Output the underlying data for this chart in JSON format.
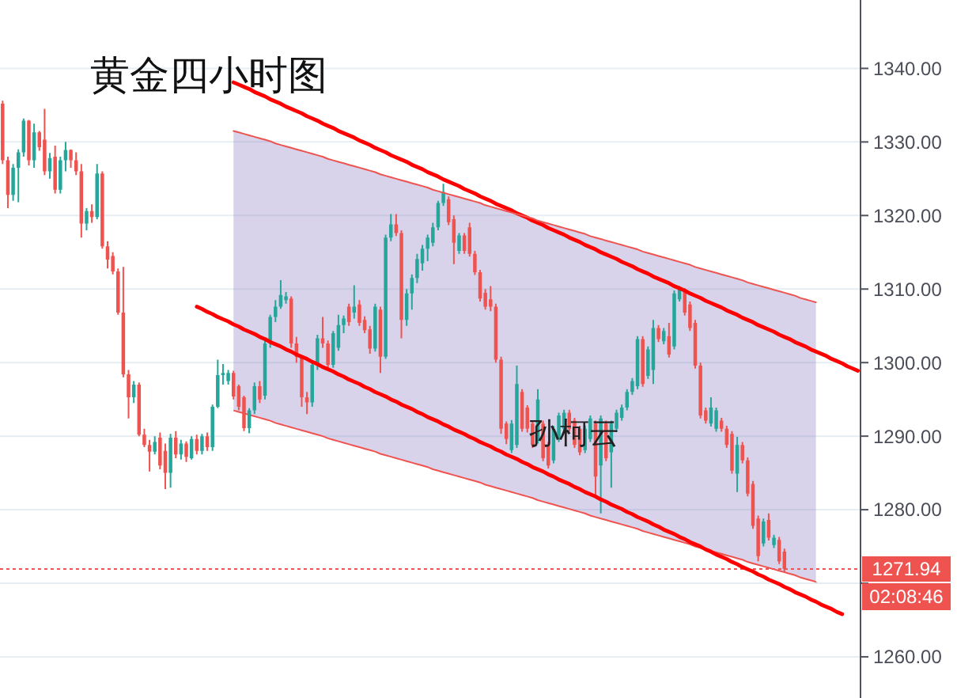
{
  "chart_data": {
    "type": "candlestick",
    "title": "黄金四小时图",
    "categories": [
      null,
      null,
      null,
      null,
      null,
      null,
      null,
      null,
      null,
      null,
      null,
      null,
      null,
      null,
      null,
      null,
      null,
      null,
      null,
      null,
      null,
      null,
      null,
      null,
      null,
      null,
      null,
      null,
      null,
      null,
      null,
      null,
      null,
      null,
      null,
      null,
      null,
      null,
      null,
      null,
      null,
      null,
      null,
      null,
      null,
      null,
      null,
      null,
      null,
      null,
      null,
      null,
      null,
      null,
      null,
      null,
      null,
      null,
      null,
      null,
      null,
      null,
      null,
      null,
      null,
      null,
      null,
      null,
      null,
      null,
      null,
      null,
      null,
      null,
      null,
      null,
      null,
      null,
      null,
      null,
      null,
      null,
      null,
      null,
      null,
      null,
      null,
      null,
      null,
      null,
      null,
      null,
      null,
      null,
      null,
      null,
      null,
      null,
      null,
      null,
      null,
      null,
      null,
      null,
      null,
      null,
      null,
      null,
      null,
      null,
      null,
      null,
      null,
      null,
      null,
      null,
      null,
      null,
      null,
      null,
      null,
      null,
      null,
      null,
      null,
      null,
      null,
      null,
      null,
      null,
      null,
      null,
      null,
      null,
      null,
      null,
      null,
      null,
      null,
      null,
      null,
      null,
      null,
      null,
      null,
      null,
      null,
      null,
      null,
      null,
      null,
      null,
      null,
      null,
      null,
      null,
      null,
      null,
      null,
      null,
      null,
      null,
      null,
      null
    ],
    "ohlc": [
      [
        1335.2,
        1335.6,
        1327,
        1327.5
      ],
      [
        1327.5,
        1328,
        1321,
        1322.8
      ],
      [
        1322.8,
        1327,
        1322,
        1326.5
      ],
      [
        1326.5,
        1329,
        1321.8,
        1328.6
      ],
      [
        1328.6,
        1333.2,
        1328,
        1332.9
      ],
      [
        1332.9,
        1333,
        1326.8,
        1327.5
      ],
      [
        1327.5,
        1332.5,
        1326.5,
        1331.3
      ],
      [
        1331.3,
        1331.5,
        1328.8,
        1329.3
      ],
      [
        1330.3,
        1334.5,
        1325.5,
        1326
      ],
      [
        1326,
        1328.5,
        1325,
        1327.8
      ],
      [
        1328,
        1329.5,
        1323,
        1323.5
      ],
      [
        1323.5,
        1328,
        1323,
        1327.5
      ],
      [
        1327.5,
        1330,
        1326,
        1328.9
      ],
      [
        1328.9,
        1329,
        1326.5,
        1327.5
      ],
      [
        1327.5,
        1328.6,
        1325.5,
        1326
      ],
      [
        1326,
        1327,
        1317,
        1318.9
      ],
      [
        1318.9,
        1321,
        1318,
        1320.6
      ],
      [
        1320.6,
        1321.5,
        1319,
        1319.8
      ],
      [
        1319.8,
        1327,
        1319.5,
        1325.7
      ],
      [
        1325.7,
        1326,
        1315.5,
        1315.8
      ],
      [
        1315.8,
        1316.5,
        1312.8,
        1314
      ],
      [
        1314.5,
        1315,
        1312,
        1312.4
      ],
      [
        1312.4,
        1312.8,
        1306.5,
        1306.8
      ],
      [
        1306.8,
        1313,
        1298,
        1298.4
      ],
      [
        1298.4,
        1299,
        1292.4,
        1295.3
      ],
      [
        1295.3,
        1297.5,
        1294.5,
        1297
      ],
      [
        1297,
        1297.3,
        1290,
        1290.2
      ],
      [
        1290.2,
        1291,
        1288.5,
        1288.8
      ],
      [
        1288.8,
        1289.5,
        1285.2,
        1287.9
      ],
      [
        1287.9,
        1290,
        1287.5,
        1289.2
      ],
      [
        1289.8,
        1290.5,
        1285.5,
        1286
      ],
      [
        1288,
        1289,
        1282.8,
        1285
      ],
      [
        1285,
        1290.3,
        1283,
        1289.8
      ],
      [
        1289.8,
        1290.7,
        1287,
        1287.5
      ],
      [
        1287.5,
        1289.5,
        1286.8,
        1289
      ],
      [
        1289,
        1289.3,
        1286.5,
        1287.2
      ],
      [
        1287,
        1290,
        1286.8,
        1289.6
      ],
      [
        1289.6,
        1290.2,
        1287.5,
        1288
      ],
      [
        1288,
        1290.3,
        1287.5,
        1290
      ],
      [
        1290,
        1290.5,
        1288,
        1288.5
      ],
      [
        1288.5,
        1294.3,
        1288,
        1294
      ],
      [
        1294,
        1300.4,
        1293.8,
        1298.3
      ],
      [
        1298.3,
        1299.8,
        1297,
        1298.6
      ],
      [
        1297.5,
        1299,
        1297,
        1298.6
      ],
      [
        1298.6,
        1298.9,
        1295,
        1295.4
      ],
      [
        1296.8,
        1297,
        1293.5,
        1294
      ],
      [
        1295.3,
        1295.5,
        1290.7,
        1291.1
      ],
      [
        1291.1,
        1293.8,
        1290.4,
        1293.5
      ],
      [
        1293.5,
        1297.3,
        1293,
        1296.8
      ],
      [
        1296.8,
        1297.5,
        1294.5,
        1295
      ],
      [
        1295.5,
        1303,
        1295,
        1302.6
      ],
      [
        1302.6,
        1306.5,
        1302,
        1306.2
      ],
      [
        1306.2,
        1308.5,
        1305.5,
        1307.6
      ],
      [
        1307.6,
        1311.2,
        1307.3,
        1309.2
      ],
      [
        1308.5,
        1309.6,
        1308,
        1309
      ],
      [
        1308.7,
        1309,
        1302,
        1302.6
      ],
      [
        1302.6,
        1303.5,
        1300,
        1300.8
      ],
      [
        1300.8,
        1301,
        1294,
        1295.3
      ],
      [
        1295.3,
        1296,
        1293,
        1294.6
      ],
      [
        1294.6,
        1300,
        1294,
        1299.7
      ],
      [
        1299.7,
        1303.8,
        1299,
        1303.3
      ],
      [
        1303.3,
        1306.2,
        1302,
        1302.6
      ],
      [
        1302.6,
        1303,
        1299,
        1299.7
      ],
      [
        1299.7,
        1304.3,
        1299.3,
        1304
      ],
      [
        1302,
        1306.5,
        1301.6,
        1305.1
      ],
      [
        1305.1,
        1306.4,
        1304,
        1306
      ],
      [
        1307.6,
        1308,
        1305,
        1305.5
      ],
      [
        1306.8,
        1310.5,
        1306,
        1307.6
      ],
      [
        1307.9,
        1308.5,
        1305,
        1305.4
      ],
      [
        1305.8,
        1306.3,
        1304,
        1304.4
      ],
      [
        1304.5,
        1305,
        1301.2,
        1301.9
      ],
      [
        1301.9,
        1308,
        1301.5,
        1307.6
      ],
      [
        1307.2,
        1307.6,
        1298.6,
        1300.8
      ],
      [
        1300.8,
        1317.4,
        1300.5,
        1317
      ],
      [
        1317,
        1320.2,
        1316.5,
        1318.8
      ],
      [
        1318.8,
        1320.2,
        1317.2,
        1317.6
      ],
      [
        1317.6,
        1318,
        1303.3,
        1305.8
      ],
      [
        1305.8,
        1310,
        1305,
        1309.4
      ],
      [
        1309.4,
        1312,
        1307.2,
        1311.5
      ],
      [
        1311.5,
        1314.8,
        1310.8,
        1314.1
      ],
      [
        1313.5,
        1316,
        1312.5,
        1315.5
      ],
      [
        1315.5,
        1317.4,
        1313.8,
        1317
      ],
      [
        1316.3,
        1319,
        1315.8,
        1318.4
      ],
      [
        1318.4,
        1322,
        1318,
        1321.7
      ],
      [
        1321.7,
        1324.3,
        1321.3,
        1323.2
      ],
      [
        1322.2,
        1322.6,
        1318.7,
        1319.1
      ],
      [
        1319.5,
        1320,
        1313.4,
        1316.3
      ],
      [
        1315.2,
        1317.6,
        1314.8,
        1317.3
      ],
      [
        1317.3,
        1317.6,
        1314.8,
        1315.2
      ],
      [
        1318.4,
        1319,
        1314.4,
        1314.8
      ],
      [
        1314.8,
        1315.2,
        1311.9,
        1312.3
      ],
      [
        1312.3,
        1312.6,
        1308.3,
        1308.7
      ],
      [
        1309.5,
        1310,
        1307.2,
        1307.6
      ],
      [
        1308.6,
        1310.4,
        1307,
        1307.6
      ],
      [
        1307.6,
        1308,
        1300,
        1300.4
      ],
      [
        1300.4,
        1300.8,
        1290.3,
        1291
      ],
      [
        1291.7,
        1292,
        1288.9,
        1289.6
      ],
      [
        1288.1,
        1292.2,
        1287.7,
        1291.7
      ],
      [
        1288.8,
        1299.6,
        1288.4,
        1297.1
      ],
      [
        1296,
        1296.4,
        1290.6,
        1291
      ],
      [
        1293.9,
        1294.2,
        1290.5,
        1291
      ],
      [
        1291.7,
        1292,
        1288.4,
        1288.8
      ],
      [
        1289.6,
        1296.4,
        1289,
        1295
      ],
      [
        1291.7,
        1292.1,
        1286.6,
        1287
      ],
      [
        1288.8,
        1289.2,
        1285.6,
        1286
      ],
      [
        1286.7,
        1291.4,
        1286.3,
        1291
      ],
      [
        1289.6,
        1293.2,
        1289.2,
        1292.8
      ],
      [
        1291,
        1293.6,
        1290.6,
        1293.2
      ],
      [
        1293.2,
        1293.6,
        1290.6,
        1291
      ],
      [
        1292.1,
        1292.5,
        1288.4,
        1288.8
      ],
      [
        1291,
        1291.4,
        1287.4,
        1287.8
      ],
      [
        1288.1,
        1291.4,
        1287.7,
        1291
      ],
      [
        1289.6,
        1292.8,
        1289.2,
        1292.4
      ],
      [
        1291.7,
        1292.1,
        1281.6,
        1284.5
      ],
      [
        1286,
        1292.8,
        1279.5,
        1292.4
      ],
      [
        1291.7,
        1292.1,
        1286.6,
        1287
      ],
      [
        1287.8,
        1292.1,
        1283,
        1291.7
      ],
      [
        1291,
        1293.6,
        1290.6,
        1293.2
      ],
      [
        1292.5,
        1294.3,
        1292.1,
        1293.9
      ],
      [
        1293.9,
        1296.4,
        1293.5,
        1296
      ],
      [
        1296,
        1297.9,
        1295.6,
        1297.5
      ],
      [
        1296.8,
        1303.6,
        1296.4,
        1303.2
      ],
      [
        1303.2,
        1303.6,
        1296.7,
        1297.1
      ],
      [
        1298.2,
        1302.2,
        1297.8,
        1301.8
      ],
      [
        1299,
        1305.8,
        1297.1,
        1304.7
      ],
      [
        1304.7,
        1305.1,
        1302.8,
        1303.2
      ],
      [
        1302.9,
        1304.7,
        1302.5,
        1304.3
      ],
      [
        1303.6,
        1305.4,
        1300.7,
        1301.1
      ],
      [
        1302.2,
        1309.8,
        1301.8,
        1309.4
      ],
      [
        1308.6,
        1310.4,
        1308.3,
        1310
      ],
      [
        1309.7,
        1310.1,
        1306.4,
        1306.8
      ],
      [
        1307.9,
        1308.3,
        1304.3,
        1304.7
      ],
      [
        1305.4,
        1305.8,
        1299.2,
        1299.6
      ],
      [
        1299.6,
        1300,
        1292.4,
        1292.8
      ],
      [
        1293.5,
        1293.9,
        1291.7,
        1292.1
      ],
      [
        1291.7,
        1295.3,
        1291.3,
        1293.9
      ],
      [
        1291,
        1293.9,
        1290.6,
        1293.5
      ],
      [
        1292.1,
        1292.5,
        1290.6,
        1291
      ],
      [
        1291,
        1291.4,
        1288.4,
        1288.8
      ],
      [
        1290.3,
        1290.7,
        1284.9,
        1285.3
      ],
      [
        1284.9,
        1289.9,
        1282.4,
        1288.8
      ],
      [
        1288.8,
        1289.2,
        1286.3,
        1286.7
      ],
      [
        1286.7,
        1287.1,
        1281.8,
        1282.2
      ],
      [
        1283.5,
        1283.9,
        1277.4,
        1277.8
      ],
      [
        1278.8,
        1279.2,
        1273,
        1273.7
      ],
      [
        1275.4,
        1278.8,
        1275,
        1278.4
      ],
      [
        1278.6,
        1279.5,
        1275.8,
        1276.2
      ],
      [
        1275.2,
        1276.6,
        1274.8,
        1276.2
      ],
      [
        1275.9,
        1276.3,
        1272.6,
        1273
      ],
      [
        1274.3,
        1274.7,
        1271.5,
        1271.94
      ],
      null,
      null,
      null,
      null,
      null,
      null,
      null,
      null,
      null,
      null,
      null,
      null,
      null,
      null
    ],
    "colors": [
      "#ef5350",
      "#ef5350",
      "#26a69a",
      "#26a69a",
      "#26a69a",
      "#ef5350",
      "#26a69a",
      "#ef5350",
      "#ef5350",
      "#26a69a",
      "#ef5350",
      "#26a69a",
      "#26a69a",
      "#ef5350",
      "#ef5350",
      "#ef5350",
      "#26a69a",
      "#ef5350",
      "#26a69a",
      "#ef5350",
      "#ef5350",
      "#ef5350",
      "#ef5350",
      "#ef5350",
      "#ef5350",
      "#26a69a",
      "#ef5350",
      "#ef5350",
      "#ef5350",
      "#26a69a",
      "#ef5350",
      "#ef5350",
      "#26a69a",
      "#ef5350",
      "#26a69a",
      "#ef5350",
      "#26a69a",
      "#ef5350",
      "#26a69a",
      "#ef5350",
      "#26a69a",
      "#26a69a",
      "#26a69a",
      "#26a69a",
      "#ef5350",
      "#ef5350",
      "#ef5350",
      "#26a69a",
      "#26a69a",
      "#ef5350",
      "#26a69a",
      "#26a69a",
      "#26a69a",
      "#26a69a",
      "#26a69a",
      "#ef5350",
      "#ef5350",
      "#ef5350",
      "#ef5350",
      "#26a69a",
      "#26a69a",
      "#ef5350",
      "#ef5350",
      "#26a69a",
      "#26a69a",
      "#26a69a",
      "#ef5350",
      "#26a69a",
      "#ef5350",
      "#ef5350",
      "#ef5350",
      "#26a69a",
      "#ef5350",
      "#26a69a",
      "#26a69a",
      "#ef5350",
      "#ef5350",
      "#26a69a",
      "#26a69a",
      "#26a69a",
      "#26a69a",
      "#26a69a",
      "#26a69a",
      "#26a69a",
      "#26a69a",
      "#ef5350",
      "#ef5350",
      "#26a69a",
      "#ef5350",
      "#ef5350",
      "#ef5350",
      "#ef5350",
      "#ef5350",
      "#ef5350",
      "#ef5350",
      "#ef5350",
      "#ef5350",
      "#26a69a",
      "#26a69a",
      "#ef5350",
      "#ef5350",
      "#ef5350",
      "#26a69a",
      "#ef5350",
      "#ef5350",
      "#26a69a",
      "#26a69a",
      "#26a69a",
      "#ef5350",
      "#ef5350",
      "#ef5350",
      "#26a69a",
      "#26a69a",
      "#ef5350",
      "#26a69a",
      "#ef5350",
      "#26a69a",
      "#26a69a",
      "#26a69a",
      "#26a69a",
      "#26a69a",
      "#26a69a",
      "#ef5350",
      "#26a69a",
      "#26a69a",
      "#ef5350",
      "#26a69a",
      "#ef5350",
      "#26a69a",
      "#26a69a",
      "#ef5350",
      "#ef5350",
      "#ef5350",
      "#ef5350",
      "#ef5350",
      "#26a69a",
      "#26a69a",
      "#ef5350",
      "#ef5350",
      "#ef5350",
      "#26a69a",
      "#ef5350",
      "#ef5350",
      "#ef5350",
      "#ef5350",
      "#26a69a",
      "#ef5350",
      "#26a69a",
      "#ef5350",
      "#ef5350",
      null,
      null,
      null,
      null,
      null,
      null,
      null,
      null,
      null,
      null,
      null,
      null,
      null,
      null
    ],
    "series": [
      {
        "type": "line",
        "color": "#ff0000",
        "values": [
          null,
          null,
          null,
          null,
          null,
          null,
          null,
          null,
          null,
          null,
          null,
          null,
          null,
          null,
          null,
          null,
          null,
          null,
          null,
          null,
          null,
          null,
          null,
          null,
          null,
          null,
          null,
          null,
          null,
          null,
          null,
          null,
          null,
          null,
          null,
          null,
          null,
          1307.6,
          1307.3,
          1306.9,
          1306.6,
          1306.2,
          1305.9,
          1305.6,
          1305.2,
          1304.9,
          1304.5,
          1304.2,
          1303.9,
          1303.5,
          1303.2,
          1302.8,
          1302.5,
          1302.2,
          1301.8,
          1301.5,
          1301.1,
          1300.8,
          1300.5,
          1300.1,
          1299.8,
          1299.4,
          1299.1,
          1298.8,
          1298.4,
          1298.1,
          1297.7,
          1297.4,
          1297.1,
          1296.7,
          1296.4,
          1296,
          1295.7,
          1295.4,
          1295,
          1294.7,
          1294.3,
          1294,
          1293.7,
          1293.3,
          1293,
          1292.6,
          1292.3,
          1292,
          1291.6,
          1291.3,
          1290.9,
          1290.6,
          1290.3,
          1289.9,
          1289.6,
          1289.2,
          1288.9,
          1288.6,
          1288.2,
          1287.9,
          1287.5,
          1287.2,
          1286.9,
          1286.5,
          1286.2,
          1285.8,
          1285.5,
          1285.2,
          1284.8,
          1284.5,
          1284.1,
          1283.8,
          1283.5,
          1283.1,
          1282.8,
          1282.4,
          1282.1,
          1281.8,
          1281.4,
          1281.1,
          1280.7,
          1280.4,
          1280.1,
          1279.7,
          1279.4,
          1279,
          1278.7,
          1278.4,
          1278,
          1277.7,
          1277.3,
          1277,
          1276.7,
          1276.3,
          1276,
          1275.6,
          1275.3,
          1275,
          1274.6,
          1274.3,
          1273.9,
          1273.6,
          1273.3,
          1272.9,
          1272.6,
          1272.2,
          1271.9,
          1271.6,
          1271.2,
          1270.9,
          1270.5,
          1270.2,
          1269.9,
          1269.5,
          1269.2,
          1268.8,
          1268.5,
          1268.2,
          1267.8,
          1267.5,
          1267.1,
          1266.8,
          1266.5,
          1266.1,
          1265.8,
          null,
          null,
          null
        ]
      },
      {
        "type": "line",
        "color": "#ff0000",
        "values": [
          null,
          null,
          null,
          null,
          null,
          null,
          null,
          null,
          null,
          null,
          null,
          null,
          null,
          null,
          null,
          null,
          null,
          null,
          null,
          null,
          null,
          null,
          null,
          null,
          null,
          null,
          null,
          null,
          null,
          null,
          null,
          null,
          null,
          null,
          null,
          null,
          null,
          null,
          null,
          null,
          null,
          null,
          null,
          null,
          1338.1,
          1337.8,
          1337.5,
          1337.2,
          1336.8,
          1336.5,
          1336.2,
          1335.8,
          1335.5,
          1335.2,
          1334.8,
          1334.5,
          1334.2,
          1333.9,
          1333.5,
          1333.2,
          1332.9,
          1332.5,
          1332.2,
          1331.9,
          1331.5,
          1331.2,
          1330.9,
          1330.6,
          1330.2,
          1329.9,
          1329.6,
          1329.2,
          1328.9,
          1328.6,
          1328.2,
          1327.9,
          1327.6,
          1327.3,
          1326.9,
          1326.6,
          1326.3,
          1325.9,
          1325.6,
          1325.3,
          1324.9,
          1324.6,
          1324.3,
          1324,
          1323.6,
          1323.3,
          1323,
          1322.6,
          1322.3,
          1322,
          1321.6,
          1321.3,
          1321,
          1320.7,
          1320.3,
          1320,
          1319.7,
          1319.3,
          1319,
          1318.7,
          1318.3,
          1318,
          1317.7,
          1317.4,
          1317,
          1316.7,
          1316.4,
          1316,
          1315.7,
          1315.4,
          1315,
          1314.7,
          1314.4,
          1314.1,
          1313.7,
          1313.4,
          1313.1,
          1312.7,
          1312.4,
          1312.1,
          1311.7,
          1311.4,
          1311.1,
          1310.8,
          1310.4,
          1310.1,
          1309.8,
          1309.4,
          1309.1,
          1308.8,
          1308.4,
          1308.1,
          1307.8,
          1307.5,
          1307.1,
          1306.8,
          1306.5,
          1306.1,
          1305.8,
          1305.5,
          1305.1,
          1304.8,
          1304.5,
          1304.2,
          1303.8,
          1303.5,
          1303.2,
          1302.8,
          1302.5,
          1302.2,
          1301.8,
          1301.5,
          1301.2,
          1300.9,
          1300.5,
          1300.2,
          1299.9,
          1299.5,
          1299.2,
          1298.9
        ]
      },
      {
        "type": "line",
        "color": "#ef5350",
        "values": [
          null,
          null,
          null,
          null,
          null,
          null,
          null,
          null,
          null,
          null,
          null,
          null,
          null,
          null,
          null,
          null,
          null,
          null,
          null,
          null,
          null,
          null,
          null,
          null,
          null,
          null,
          null,
          null,
          null,
          null,
          null,
          null,
          null,
          null,
          null,
          null,
          null,
          null,
          null,
          null,
          null,
          null,
          null,
          null,
          1331.5,
          1331.3,
          1331.1,
          1330.9,
          1330.7,
          1330.5,
          1330.3,
          1330.1,
          1329.8,
          1329.6,
          1329.4,
          1329.2,
          1329,
          1328.8,
          1328.6,
          1328.4,
          1328.2,
          1328,
          1327.7,
          1327.5,
          1327.3,
          1327.1,
          1326.9,
          1326.7,
          1326.5,
          1326.3,
          1326.1,
          1325.9,
          1325.6,
          1325.4,
          1325.2,
          1325,
          1324.8,
          1324.6,
          1324.4,
          1324.2,
          1324,
          1323.8,
          1323.5,
          1323.3,
          1323.1,
          1322.9,
          1322.7,
          1322.5,
          1322.3,
          1322.1,
          1321.9,
          1321.7,
          1321.4,
          1321.2,
          1321,
          1320.8,
          1320.6,
          1320.4,
          1320.2,
          1320,
          1319.8,
          1319.6,
          1319.3,
          1319.1,
          1318.9,
          1318.7,
          1318.5,
          1318.3,
          1318.1,
          1317.9,
          1317.7,
          1317.5,
          1317.2,
          1317,
          1316.8,
          1316.6,
          1316.4,
          1316.2,
          1316,
          1315.8,
          1315.6,
          1315.4,
          1315.1,
          1314.9,
          1314.7,
          1314.5,
          1314.3,
          1314.1,
          1313.9,
          1313.7,
          1313.5,
          1313.3,
          1313,
          1312.8,
          1312.6,
          1312.4,
          1312.2,
          1312,
          1311.8,
          1311.6,
          1311.4,
          1311.2,
          1310.9,
          1310.7,
          1310.5,
          1310.3,
          1310.1,
          1309.9,
          1309.7,
          1309.5,
          1309.3,
          1309.1,
          1308.8,
          1308.6,
          1308.4,
          1308.2,
          null,
          null,
          null,
          null,
          null,
          null,
          null,
          null
        ],
        "upper": [
          null,
          null,
          null,
          null,
          null,
          null,
          null,
          null,
          null,
          null,
          null,
          null,
          null,
          null,
          null,
          null,
          null,
          null,
          null,
          null,
          null,
          null,
          null,
          null,
          null,
          null,
          null,
          null,
          null,
          null,
          null,
          null,
          null,
          null,
          null,
          null,
          null,
          null,
          null,
          null,
          null,
          null,
          null,
          null,
          1331.5,
          1331.3,
          1331.1,
          1330.9,
          1330.7,
          1330.5,
          1330.3,
          1330.1,
          1329.8,
          1329.6,
          1329.4,
          1329.2,
          1329,
          1328.8,
          1328.6,
          1328.4,
          1328.2,
          1328,
          1327.7,
          1327.5,
          1327.3,
          1327.1,
          1326.9,
          1326.7,
          1326.5,
          1326.3,
          1326.1,
          1325.9,
          1325.6,
          1325.4,
          1325.2,
          1325,
          1324.8,
          1324.6,
          1324.4,
          1324.2,
          1324,
          1323.8,
          1323.5,
          1323.3,
          1323.1,
          1322.9,
          1322.7,
          1322.5,
          1322.3,
          1322.1,
          1321.9,
          1321.7,
          1321.4,
          1321.2,
          1321,
          1320.8,
          1320.6,
          1320.4,
          1320.2,
          1320,
          1319.8,
          1319.6,
          1319.3,
          1319.1,
          1318.9,
          1318.7,
          1318.5,
          1318.3,
          1318.1,
          1317.9,
          1317.7,
          1317.5,
          1317.2,
          1317,
          1316.8,
          1316.6,
          1316.4,
          1316.2,
          1316,
          1315.8,
          1315.6,
          1315.4,
          1315.1,
          1314.9,
          1314.7,
          1314.5,
          1314.3,
          1314.1,
          1313.9,
          1313.7,
          1313.5,
          1313.3,
          1313,
          1312.8,
          1312.6,
          1312.4,
          1312.2,
          1312,
          1311.8,
          1311.6,
          1311.4,
          1311.2,
          1310.9,
          1310.7,
          1310.5,
          1310.3,
          1310.1,
          1309.9,
          1309.7,
          1309.5,
          1309.3,
          1309.1,
          1308.8,
          1308.6,
          1308.4,
          1308.2,
          null,
          null,
          null,
          null,
          null,
          null,
          null,
          null
        ],
        "lower": [
          null,
          null,
          null,
          null,
          null,
          null,
          null,
          null,
          null,
          null,
          null,
          null,
          null,
          null,
          null,
          null,
          null,
          null,
          null,
          null,
          null,
          null,
          null,
          null,
          null,
          null,
          null,
          null,
          null,
          null,
          null,
          null,
          null,
          null,
          null,
          null,
          null,
          null,
          null,
          null,
          null,
          null,
          null,
          null,
          1293.5,
          1293.3,
          1293.1,
          1292.9,
          1292.7,
          1292.5,
          1292.3,
          1292.1,
          1291.8,
          1291.6,
          1291.4,
          1291.2,
          1291,
          1290.8,
          1290.6,
          1290.4,
          1290.2,
          1290,
          1289.7,
          1289.5,
          1289.3,
          1289.1,
          1288.9,
          1288.7,
          1288.5,
          1288.3,
          1288.1,
          1287.9,
          1287.6,
          1287.4,
          1287.2,
          1287,
          1286.8,
          1286.6,
          1286.4,
          1286.2,
          1286,
          1285.8,
          1285.5,
          1285.3,
          1285.1,
          1284.9,
          1284.7,
          1284.5,
          1284.3,
          1284.1,
          1283.9,
          1283.7,
          1283.4,
          1283.2,
          1283,
          1282.8,
          1282.6,
          1282.4,
          1282.2,
          1282,
          1281.8,
          1281.6,
          1281.3,
          1281.1,
          1280.9,
          1280.7,
          1280.5,
          1280.3,
          1280.1,
          1279.9,
          1279.7,
          1279.5,
          1279.2,
          1279,
          1278.8,
          1278.6,
          1278.4,
          1278.2,
          1278,
          1277.8,
          1277.6,
          1277.4,
          1277.1,
          1276.9,
          1276.7,
          1276.5,
          1276.3,
          1276.1,
          1275.9,
          1275.7,
          1275.5,
          1275.3,
          1275,
          1274.8,
          1274.6,
          1274.4,
          1274.2,
          1274,
          1273.8,
          1273.6,
          1273.4,
          1273.2,
          1272.9,
          1272.7,
          1272.5,
          1272.3,
          1272.1,
          1271.9,
          1271.7,
          1271.5,
          1271.3,
          1271.1,
          1270.8,
          1270.6,
          1270.4,
          1270.2,
          null,
          null,
          null,
          null,
          null,
          null,
          null,
          null
        ]
      }
    ],
    "ref_lines": [
      {
        "axis": "y",
        "value": 1271.94,
        "label": "1271.94",
        "color": "#ef5350",
        "line_style": "dotted"
      }
    ],
    "annotations": [
      "孙柯云",
      "02:08:46"
    ],
    "ylim": [
      1254.4,
      1349.3
    ],
    "yticks": [
      {
        "value": 1260,
        "label": "1260.00"
      },
      {
        "value": 1270,
        "label": null
      },
      {
        "value": 1280,
        "label": "1280.00"
      },
      {
        "value": 1290,
        "label": "1290.00"
      },
      {
        "value": 1300,
        "label": "1300.00"
      },
      {
        "value": 1310,
        "label": "1310.00"
      },
      {
        "value": 1320,
        "label": "1320.00"
      },
      {
        "value": 1330,
        "label": "1330.00"
      },
      {
        "value": 1340,
        "label": "1340.00"
      }
    ],
    "grid": "y",
    "tick_labels": "y"
  }
}
